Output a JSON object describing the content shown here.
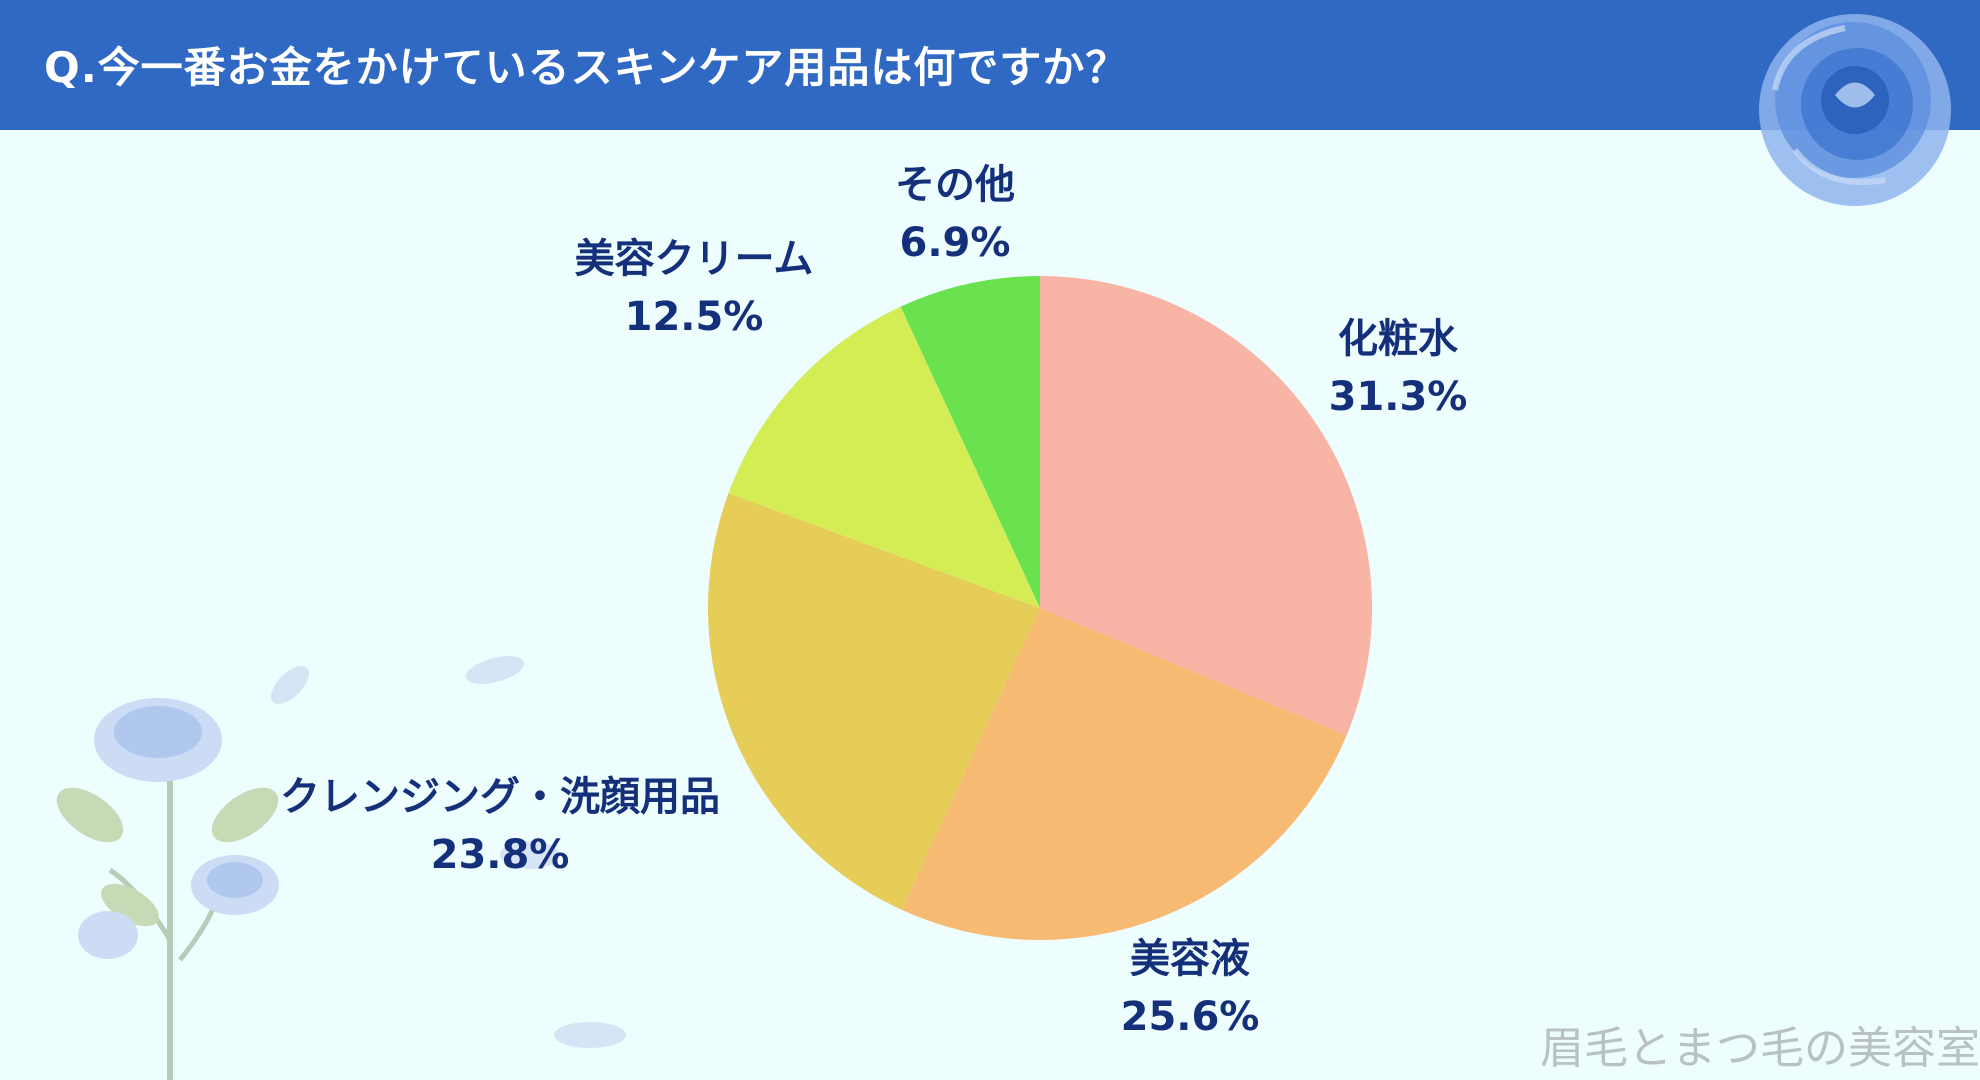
{
  "header": {
    "title": "Q.今一番お金をかけているスキンケア用品は何ですか？"
  },
  "chart_data": {
    "type": "pie",
    "title": "Q.今一番お金をかけているスキンケア用品は何ですか？",
    "categories": [
      "化粧水",
      "美容液",
      "クレンジング・洗顔用品",
      "美容クリーム",
      "その他"
    ],
    "values": [
      31.3,
      25.6,
      23.8,
      12.5,
      6.9
    ],
    "value_labels": [
      "31.3%",
      "25.6%",
      "23.8%",
      "12.5%",
      "6.9%"
    ],
    "colors": [
      "#f8b4a4",
      "#f6ba72",
      "#e6cd58",
      "#d4ed55",
      "#6ae250"
    ],
    "label_color": "#14307a",
    "start": "12 o'clock",
    "direction": "clockwise"
  },
  "watermark": "眉毛とまつ毛の美容室",
  "colors": {
    "header_bg": "#2f69c3",
    "page_bg": "#eefdfd"
  }
}
